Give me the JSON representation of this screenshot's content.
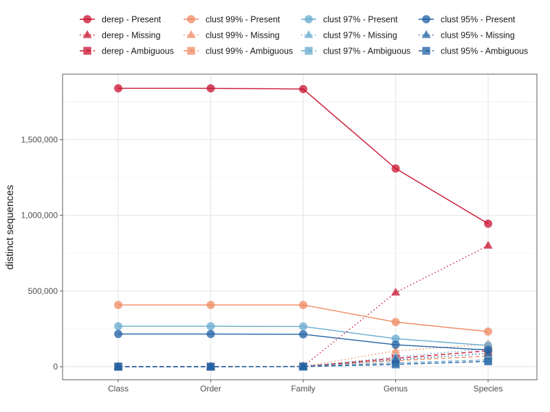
{
  "chart_data": {
    "type": "line",
    "title": "",
    "xlabel": "",
    "ylabel": "distinct sequences",
    "categories": [
      "Class",
      "Order",
      "Family",
      "Genus",
      "Species"
    ],
    "ylim": [
      -10000,
      1880000
    ],
    "y_ticks": [
      0,
      500000,
      1000000,
      1500000
    ],
    "y_tick_labels": [
      "0",
      "500,000",
      "1,000,000",
      "1,500,000"
    ],
    "grid": true,
    "legend_position": "top",
    "series": [
      {
        "name": "derep - Present",
        "group": "derep",
        "status": "Present",
        "color": "#c8102e",
        "marker": "circle",
        "line": "solid",
        "values": [
          1840000,
          1840000,
          1835000,
          1310000,
          945000
        ]
      },
      {
        "name": "derep - Missing",
        "group": "derep",
        "status": "Missing",
        "color": "#c8102e",
        "marker": "triangle",
        "line": "dotted",
        "values": [
          0,
          0,
          2000,
          490000,
          800000
        ]
      },
      {
        "name": "derep - Ambiguous",
        "group": "derep",
        "status": "Ambiguous",
        "color": "#c8102e",
        "marker": "square",
        "line": "dashed",
        "values": [
          0,
          0,
          2000,
          55000,
          105000
        ]
      },
      {
        "name": "clust 99% - Present",
        "group": "clust 99%",
        "status": "Present",
        "color": "#ef8a62",
        "marker": "circle",
        "line": "solid",
        "values": [
          408000,
          408000,
          408000,
          295000,
          232000
        ]
      },
      {
        "name": "clust 99% - Missing",
        "group": "clust 99%",
        "status": "Missing",
        "color": "#ef8a62",
        "marker": "triangle",
        "line": "dotted",
        "values": [
          0,
          0,
          1000,
          105000,
          148000
        ]
      },
      {
        "name": "clust 99% - Ambiguous",
        "group": "clust 99%",
        "status": "Ambiguous",
        "color": "#ef8a62",
        "marker": "square",
        "line": "dashed",
        "values": [
          0,
          0,
          1000,
          40000,
          70000
        ]
      },
      {
        "name": "clust 97% - Present",
        "group": "clust 97%",
        "status": "Present",
        "color": "#67a9cf",
        "marker": "circle",
        "line": "solid",
        "values": [
          267000,
          267000,
          266000,
          185000,
          140000
        ]
      },
      {
        "name": "clust 97% - Missing",
        "group": "clust 97%",
        "status": "Missing",
        "color": "#67a9cf",
        "marker": "triangle",
        "line": "dotted",
        "values": [
          0,
          0,
          500,
          65000,
          120000
        ]
      },
      {
        "name": "clust 97% - Ambiguous",
        "group": "clust 97%",
        "status": "Ambiguous",
        "color": "#67a9cf",
        "marker": "square",
        "line": "dashed",
        "values": [
          0,
          0,
          500,
          25000,
          45000
        ]
      },
      {
        "name": "clust 95% - Present",
        "group": "clust 95%",
        "status": "Present",
        "color": "#1f5fa3",
        "marker": "circle",
        "line": "solid",
        "values": [
          216000,
          216000,
          214000,
          145000,
          110000
        ]
      },
      {
        "name": "clust 95% - Missing",
        "group": "clust 95%",
        "status": "Missing",
        "color": "#1f5fa3",
        "marker": "triangle",
        "line": "dotted",
        "values": [
          0,
          0,
          500,
          45000,
          88000
        ]
      },
      {
        "name": "clust 95% - Ambiguous",
        "group": "clust 95%",
        "status": "Ambiguous",
        "color": "#1f5fa3",
        "marker": "square",
        "line": "dashed",
        "values": [
          0,
          0,
          500,
          15000,
          35000
        ]
      }
    ]
  }
}
